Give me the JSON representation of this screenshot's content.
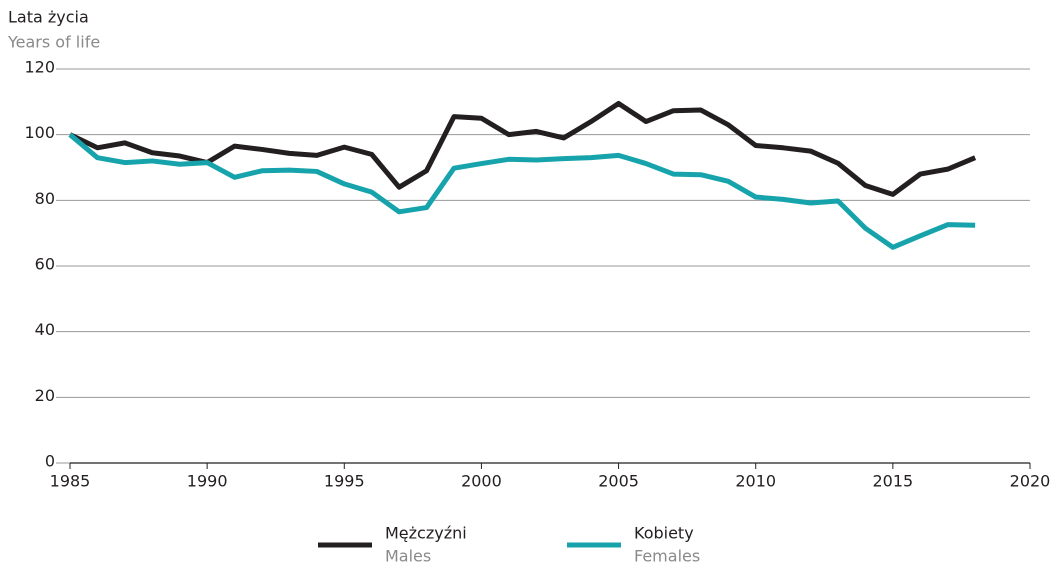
{
  "chart_data": {
    "type": "line",
    "y_label": "Lata życia",
    "y_label_en": "Years of life",
    "x": [
      1985,
      1986,
      1987,
      1988,
      1989,
      1990,
      1991,
      1992,
      1993,
      1994,
      1995,
      1996,
      1997,
      1998,
      1999,
      2000,
      2001,
      2002,
      2003,
      2004,
      2005,
      2006,
      2007,
      2008,
      2009,
      2010,
      2011,
      2012,
      2013,
      2014,
      2015,
      2016,
      2017,
      2018
    ],
    "series": [
      {
        "name": "Mężczyźni",
        "name_en": "Males",
        "color": "#231f20",
        "values": [
          100,
          96,
          97.5,
          94.5,
          93.5,
          91.5,
          96.5,
          95.5,
          94.3,
          93.7,
          96.2,
          94,
          84,
          89,
          105.5,
          105,
          100,
          101,
          99,
          104,
          109.5,
          104,
          107.3,
          107.5,
          103,
          96.7,
          96,
          95,
          91.3,
          84.5,
          81.8,
          88,
          89.5,
          93
        ]
      },
      {
        "name": "Kobiety",
        "name_en": "Females",
        "color": "#17a3ab",
        "values": [
          100,
          93,
          91.5,
          92,
          91,
          91.5,
          87,
          89,
          89.2,
          88.8,
          85,
          82.5,
          76.5,
          77.8,
          89.8,
          91.2,
          92.5,
          92.3,
          92.7,
          93,
          93.7,
          91.2,
          88,
          87.8,
          85.8,
          81,
          80.3,
          79.2,
          79.8,
          71.5,
          65.7,
          69.2,
          72.6,
          72.4
        ]
      }
    ],
    "xlim": [
      1985,
      2020
    ],
    "xticks": [
      1985,
      1990,
      1995,
      2000,
      2005,
      2010,
      2015,
      2020
    ],
    "ylim": [
      0,
      120
    ],
    "yticks": [
      0,
      20,
      40,
      60,
      80,
      100,
      120
    ],
    "grid": true,
    "legend": "bottom"
  }
}
